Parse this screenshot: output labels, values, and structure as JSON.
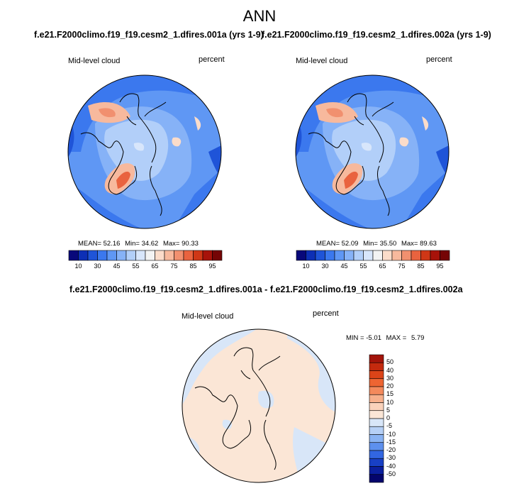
{
  "page_title": "ANN",
  "chart_data": [
    {
      "type": "heatmap",
      "projection": "north polar stereographic",
      "title": "f.e21.F2000climo.f19_f19.cesm2_1.dfires.001a (yrs 1-9)",
      "left_label": "Mid-level cloud",
      "right_label": "percent",
      "stats": {
        "mean_label": "MEAN=",
        "mean": "52.16",
        "min_label": "Min=",
        "min": "34.62",
        "max_label": "Max=",
        "max": "90.33"
      },
      "colorbar_ticks": [
        "10",
        "30",
        "45",
        "55",
        "65",
        "75",
        "85",
        "95"
      ],
      "colorbar_colors": [
        "#08087a",
        "#0d2fb5",
        "#1f54d8",
        "#3b78ee",
        "#5f97f4",
        "#86b2f7",
        "#b2cff9",
        "#d8e6fb",
        "#f3f3f3",
        "#fbdcca",
        "#f7b99d",
        "#f1906f",
        "#e9633f",
        "#cf3716",
        "#a7130a",
        "#750505"
      ]
    },
    {
      "type": "heatmap",
      "projection": "north polar stereographic",
      "title": "f.e21.F2000climo.f19_f19.cesm2_1.dfires.002a (yrs 1-9)",
      "left_label": "Mid-level cloud",
      "right_label": "percent",
      "stats": {
        "mean_label": "MEAN=",
        "mean": "52.09",
        "min_label": "Min=",
        "min": "35.50",
        "max_label": "Max=",
        "max": "89.63"
      },
      "colorbar_ticks": [
        "10",
        "30",
        "45",
        "55",
        "65",
        "75",
        "85",
        "95"
      ],
      "colorbar_colors": [
        "#08087a",
        "#0d2fb5",
        "#1f54d8",
        "#3b78ee",
        "#5f97f4",
        "#86b2f7",
        "#b2cff9",
        "#d8e6fb",
        "#f3f3f3",
        "#fbdcca",
        "#f7b99d",
        "#f1906f",
        "#e9633f",
        "#cf3716",
        "#a7130a",
        "#750505"
      ]
    },
    {
      "type": "heatmap",
      "projection": "north polar stereographic",
      "title": "f.e21.F2000climo.f19_f19.cesm2_1.dfires.001a - f.e21.F2000climo.f19_f19.cesm2_1.dfires.002a",
      "left_label": "Mid-level cloud",
      "right_label": "percent",
      "stats": {
        "min_label": "MIN =",
        "min": "-5.01",
        "max_label": "MAX =",
        "max": "5.79"
      },
      "colorbar_ticks": [
        "50",
        "40",
        "30",
        "20",
        "15",
        "10",
        "5",
        "0",
        "-5",
        "-10",
        "-15",
        "-20",
        "-30",
        "-40",
        "-50"
      ],
      "colorbar_colors": [
        "#a3140a",
        "#c42a0e",
        "#dc4418",
        "#ee6532",
        "#f48a5c",
        "#f7b08c",
        "#fad2bb",
        "#fbe6d6",
        "#d8e6f8",
        "#b6d0f6",
        "#8ab3f3",
        "#5d90ee",
        "#3266e2",
        "#1840c5",
        "#0b1f9e",
        "#04056c"
      ]
    }
  ]
}
